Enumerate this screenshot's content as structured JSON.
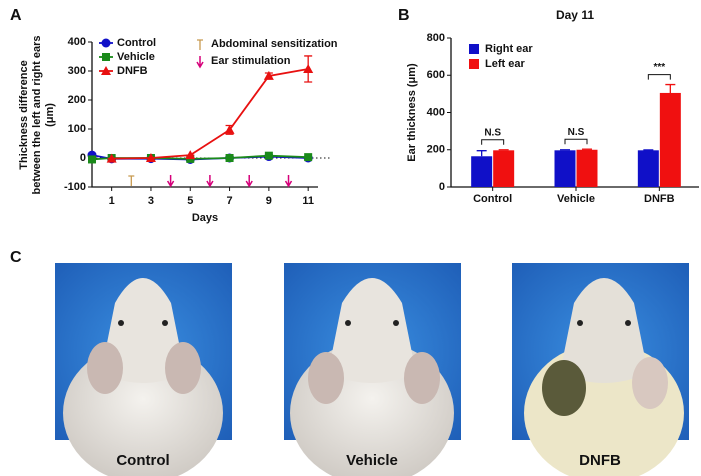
{
  "panel_labels": [
    "A",
    "B",
    "C"
  ],
  "chart_data": [
    {
      "type": "line",
      "ylabel": [
        "Thickness difference",
        "between the left and right ears",
        "(μm)"
      ],
      "xlabel": "Days",
      "xlim": [
        0,
        11.5
      ],
      "xticks": [
        1,
        3,
        5,
        7,
        9,
        11
      ],
      "ylim": [
        -100,
        400
      ],
      "yticks": [
        -100,
        0,
        100,
        200,
        300,
        400
      ],
      "series": [
        {
          "name": "Control",
          "color": "#1010c8",
          "marker": "circle",
          "x": [
            0,
            1,
            3,
            5,
            7,
            9,
            11
          ],
          "values": [
            10,
            -3,
            -2,
            -5,
            0,
            5,
            0
          ]
        },
        {
          "name": "Vehicle",
          "color": "#1a8a1a",
          "marker": "square",
          "x": [
            0,
            1,
            3,
            5,
            7,
            9,
            11
          ],
          "values": [
            -5,
            0,
            0,
            -3,
            0,
            8,
            3
          ]
        },
        {
          "name": "DNFB",
          "color": "#e81010",
          "marker": "triangle",
          "x": [
            1,
            3,
            5,
            7,
            9,
            11
          ],
          "values": [
            -2,
            0,
            10,
            97,
            283,
            307
          ],
          "errors": [
            0,
            0,
            0,
            15,
            10,
            45
          ]
        }
      ],
      "events": [
        {
          "name": "Abdominal sensitization",
          "color": "#c89a50",
          "symbol": "tee",
          "days": [
            2
          ]
        },
        {
          "name": "Ear stimulation",
          "color": "#d6007a",
          "symbol": "arrow",
          "days": [
            4,
            6,
            8,
            10
          ]
        }
      ]
    },
    {
      "type": "bar",
      "title": "Day 11",
      "ylabel": "Ear thickness (μm)",
      "categories": [
        "Control",
        "Vehicle",
        "DNFB"
      ],
      "ylim": [
        0,
        800
      ],
      "yticks": [
        0,
        200,
        400,
        600,
        800
      ],
      "series": [
        {
          "name": "Right ear",
          "color": "#1010c8",
          "values": [
            165,
            197,
            197
          ],
          "errors": [
            30,
            3,
            2
          ]
        },
        {
          "name": "Left ear",
          "color": "#f01010",
          "values": [
            197,
            200,
            505
          ],
          "errors": [
            3,
            3,
            45
          ]
        }
      ],
      "significance": [
        "N.S",
        "N.S",
        "***"
      ]
    }
  ],
  "photo_captions": [
    "Control",
    "Vehicle",
    "DNFB"
  ]
}
